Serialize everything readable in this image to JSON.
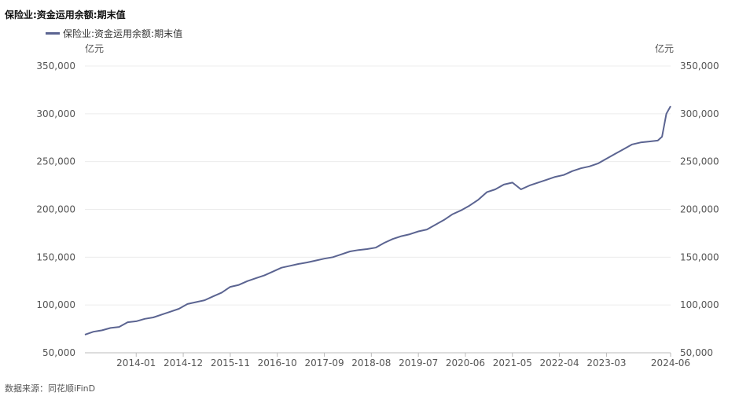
{
  "chart_data": {
    "type": "line",
    "title": "保险业:资金运用余额:期末值",
    "left_unit": "亿元",
    "right_unit": "亿元",
    "ylim": [
      50000,
      350000
    ],
    "y_ticks": [
      "50,000",
      "100,000",
      "150,000",
      "200,000",
      "250,000",
      "300,000",
      "350,000"
    ],
    "y_tick_values": [
      50000,
      100000,
      150000,
      200000,
      250000,
      300000,
      350000
    ],
    "x_start": "2013-01",
    "x_end": "2024-06",
    "x_ticks": [
      "2014-01",
      "2014-12",
      "2015-11",
      "2016-10",
      "2017-09",
      "2018-08",
      "2019-07",
      "2020-06",
      "2021-05",
      "2022-04",
      "2023-03",
      "2024-06"
    ],
    "grid": true,
    "legend_position": "top-left",
    "line_color": "#5b6491",
    "series": [
      {
        "name": "保险业:资金运用余额:期末值",
        "x": [
          "2013-01",
          "2013-03",
          "2013-05",
          "2013-07",
          "2013-09",
          "2013-11",
          "2014-01",
          "2014-03",
          "2014-05",
          "2014-07",
          "2014-09",
          "2014-11",
          "2015-01",
          "2015-03",
          "2015-05",
          "2015-07",
          "2015-09",
          "2015-11",
          "2016-01",
          "2016-03",
          "2016-05",
          "2016-07",
          "2016-09",
          "2016-11",
          "2017-01",
          "2017-03",
          "2017-05",
          "2017-07",
          "2017-09",
          "2017-11",
          "2018-01",
          "2018-03",
          "2018-05",
          "2018-07",
          "2018-09",
          "2018-11",
          "2019-01",
          "2019-03",
          "2019-05",
          "2019-07",
          "2019-09",
          "2019-11",
          "2020-01",
          "2020-03",
          "2020-05",
          "2020-07",
          "2020-09",
          "2020-11",
          "2021-01",
          "2021-03",
          "2021-05",
          "2021-07",
          "2021-09",
          "2021-11",
          "2022-01",
          "2022-03",
          "2022-05",
          "2022-07",
          "2022-09",
          "2022-11",
          "2023-01",
          "2023-03",
          "2023-05",
          "2023-07",
          "2023-09",
          "2023-11",
          "2024-01",
          "2024-03",
          "2024-04",
          "2024-05",
          "2024-06"
        ],
        "values": [
          69000,
          72000,
          73500,
          76000,
          77000,
          82000,
          83000,
          85500,
          87000,
          90000,
          93000,
          96000,
          101000,
          103000,
          105000,
          109000,
          113000,
          119000,
          121000,
          125000,
          128000,
          131000,
          135000,
          139000,
          141000,
          143000,
          144500,
          146500,
          148500,
          150000,
          153000,
          156000,
          157500,
          158500,
          160000,
          165000,
          169000,
          172000,
          174000,
          177000,
          179000,
          184000,
          189000,
          195000,
          199000,
          204000,
          210000,
          218000,
          221000,
          226000,
          228000,
          221000,
          225000,
          228000,
          231000,
          234000,
          236000,
          240000,
          243000,
          245000,
          248000,
          253000,
          258000,
          263000,
          268000,
          270000,
          271000,
          272000,
          276000,
          300000,
          308000
        ]
      }
    ],
    "source_note": "数据来源：同花顺iFinD"
  }
}
